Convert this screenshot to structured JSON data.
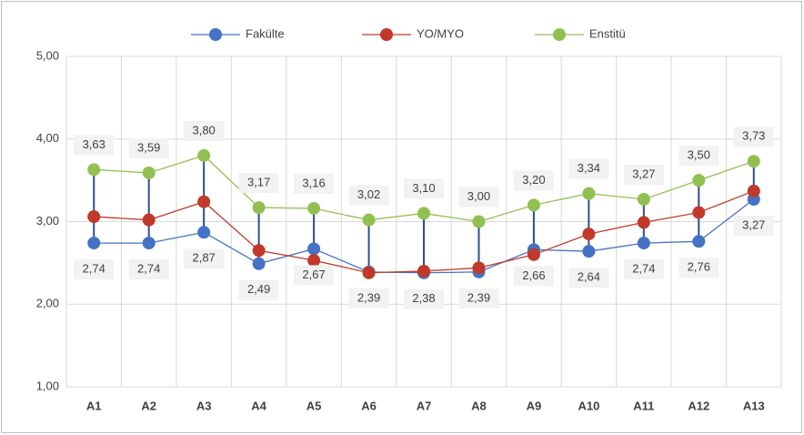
{
  "chart_data": {
    "type": "line",
    "categories": [
      "A1",
      "A2",
      "A3",
      "A4",
      "A5",
      "A6",
      "A7",
      "A8",
      "A9",
      "A10",
      "A11",
      "A12",
      "A13"
    ],
    "series": [
      {
        "name": "Fakülte",
        "color": "#4472c4",
        "label_position": "below",
        "values": [
          2.74,
          2.74,
          2.87,
          2.49,
          2.67,
          2.39,
          2.38,
          2.39,
          2.66,
          2.64,
          2.74,
          2.76,
          3.27
        ],
        "value_labels": [
          "2,74",
          "2,74",
          "2,87",
          "2,49",
          "2,67",
          "2,39",
          "2,38",
          "2,39",
          "2,66",
          "2,64",
          "2,74",
          "2,76",
          "3,27"
        ]
      },
      {
        "name": "YO/MYO",
        "color": "#c0392b",
        "values": [
          3.06,
          3.02,
          3.24,
          2.65,
          2.53,
          2.38,
          2.4,
          2.44,
          2.6,
          2.85,
          2.99,
          3.11,
          3.37
        ]
      },
      {
        "name": "Enstitü",
        "color": "#92c050",
        "label_position": "above",
        "values": [
          3.63,
          3.59,
          3.8,
          3.17,
          3.16,
          3.02,
          3.1,
          3.0,
          3.2,
          3.34,
          3.27,
          3.5,
          3.73
        ],
        "value_labels": [
          "3,63",
          "3,59",
          "3,80",
          "3,17",
          "3,16",
          "3,02",
          "3,10",
          "3,00",
          "3,20",
          "3,34",
          "3,27",
          "3,50",
          "3,73"
        ]
      }
    ],
    "high_low_lines": true,
    "high_low_color": "#2e4d8f",
    "ylim": [
      1,
      5
    ],
    "yticks": [
      {
        "value": 1,
        "label": "1,00"
      },
      {
        "value": 2,
        "label": "2,00"
      },
      {
        "value": 3,
        "label": "3,00"
      },
      {
        "value": 4,
        "label": "4,00"
      },
      {
        "value": 5,
        "label": "5,00"
      }
    ],
    "grid": true,
    "legend": "top"
  }
}
